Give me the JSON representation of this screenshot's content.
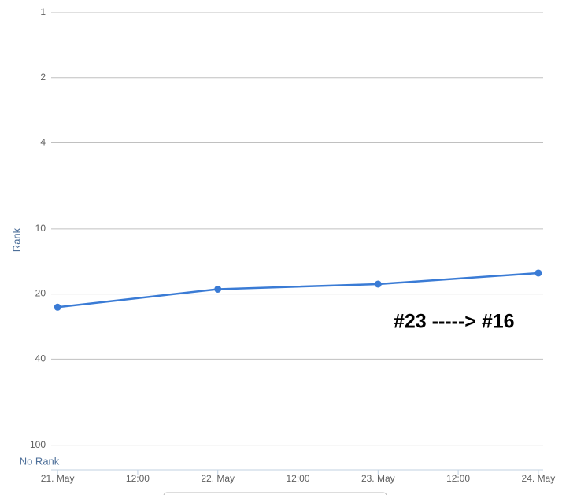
{
  "chart_data": {
    "type": "line",
    "y_label": "Rank",
    "no_rank_label": "No Rank",
    "annotation": "#23 -----> #16",
    "x": [
      0,
      1,
      2,
      3
    ],
    "xlim": [
      -0.04,
      3.03
    ],
    "xticks": [
      {
        "value": 0,
        "label": "21. May"
      },
      {
        "value": 0.5,
        "label": "12:00"
      },
      {
        "value": 1,
        "label": "22. May"
      },
      {
        "value": 1.5,
        "label": "12:00"
      },
      {
        "value": 2,
        "label": "23. May"
      },
      {
        "value": 2.5,
        "label": "12:00"
      },
      {
        "value": 3,
        "label": "24. May"
      }
    ],
    "series": [
      {
        "name": "Rank",
        "color": "#3a7bd5",
        "values": [
          23,
          19,
          18,
          16
        ]
      }
    ],
    "ylim": [
      1,
      130
    ],
    "yticks": [
      1,
      2,
      4,
      10,
      20,
      40,
      100
    ],
    "log_y": true,
    "reversed_y": true,
    "grid": true,
    "legend": false
  }
}
